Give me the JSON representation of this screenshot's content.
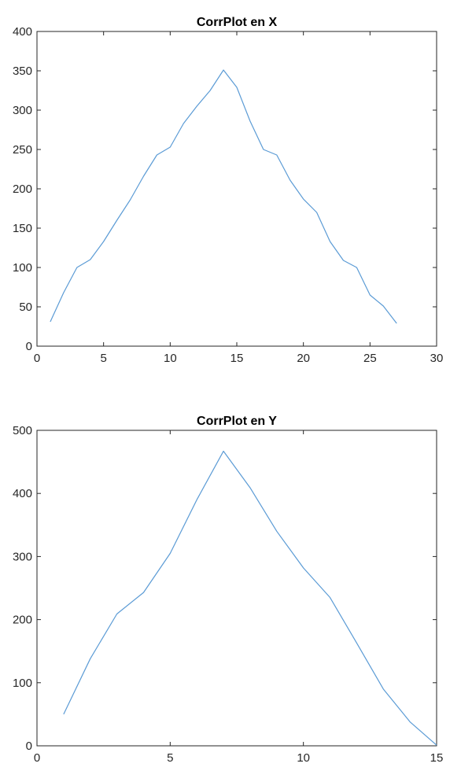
{
  "chart_data": [
    {
      "type": "line",
      "title": "CorrPlot en X",
      "xlabel": "",
      "ylabel": "",
      "xlim": [
        0,
        30
      ],
      "ylim": [
        0,
        400
      ],
      "xticks": [
        0,
        5,
        10,
        15,
        20,
        25,
        30
      ],
      "yticks": [
        0,
        50,
        100,
        150,
        200,
        250,
        300,
        350,
        400
      ],
      "grid": false,
      "line_color": "#5B9BD5",
      "series": [
        {
          "x": [
            1,
            2,
            3,
            4,
            5,
            6,
            7,
            8,
            9,
            10,
            11,
            12,
            13,
            14,
            15,
            16,
            17,
            18,
            19,
            20,
            21,
            22,
            23,
            24,
            25,
            26,
            27
          ],
          "values": [
            31,
            68,
            100,
            110,
            133,
            160,
            186,
            216,
            243,
            253,
            283,
            305,
            325,
            351,
            329,
            286,
            250,
            243,
            211,
            187,
            170,
            133,
            109,
            100,
            65,
            51,
            29
          ]
        }
      ]
    },
    {
      "type": "line",
      "title": "CorrPlot en Y",
      "xlabel": "",
      "ylabel": "",
      "xlim": [
        0,
        15
      ],
      "ylim": [
        0,
        500
      ],
      "xticks": [
        0,
        5,
        10,
        15
      ],
      "yticks": [
        0,
        100,
        200,
        300,
        400,
        500
      ],
      "grid": false,
      "line_color": "#5B9BD5",
      "series": [
        {
          "x": [
            1,
            2,
            3,
            4,
            5,
            6,
            7,
            8,
            9,
            10,
            11,
            12,
            13,
            14,
            15
          ],
          "values": [
            50,
            138,
            209,
            243,
            305,
            390,
            467,
            409,
            340,
            282,
            235,
            163,
            90,
            38,
            1
          ]
        }
      ]
    }
  ]
}
